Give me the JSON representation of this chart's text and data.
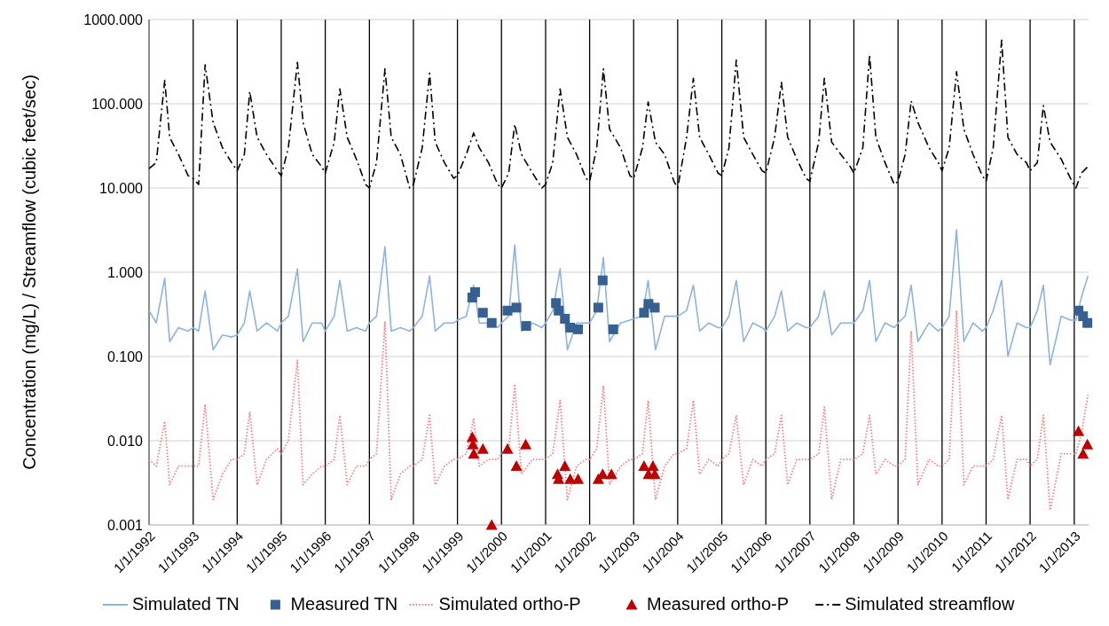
{
  "chart_data": {
    "type": "line",
    "ylabel": "Concentration (mg/L) / Streamflow (cubic feet/sec)",
    "log": "y",
    "grid": true,
    "legend": "bottom",
    "xlim": [
      "1992-01-01",
      "2013-04-30"
    ],
    "xticks": [
      {
        "value": "1992-01-01",
        "label": "1/1/1992"
      },
      {
        "value": "1993-01-01",
        "label": "1/1/1993"
      },
      {
        "value": "1994-01-01",
        "label": "1/1/1994"
      },
      {
        "value": "1995-01-01",
        "label": "1/1/1995"
      },
      {
        "value": "1996-01-01",
        "label": "1/1/1996"
      },
      {
        "value": "1997-01-01",
        "label": "1/1/1997"
      },
      {
        "value": "1998-01-01",
        "label": "1/1/1998"
      },
      {
        "value": "1999-01-01",
        "label": "1/1/1999"
      },
      {
        "value": "2000-01-01",
        "label": "1/1/2000"
      },
      {
        "value": "2001-01-01",
        "label": "1/1/2001"
      },
      {
        "value": "2002-01-01",
        "label": "1/1/2002"
      },
      {
        "value": "2003-01-01",
        "label": "1/1/2003"
      },
      {
        "value": "2004-01-01",
        "label": "1/1/2004"
      },
      {
        "value": "2005-01-01",
        "label": "1/1/2005"
      },
      {
        "value": "2006-01-01",
        "label": "1/1/2006"
      },
      {
        "value": "2007-01-01",
        "label": "1/1/2007"
      },
      {
        "value": "2008-01-01",
        "label": "1/1/2008"
      },
      {
        "value": "2009-01-01",
        "label": "1/1/2009"
      },
      {
        "value": "2010-01-01",
        "label": "1/1/2010"
      },
      {
        "value": "2011-01-01",
        "label": "1/1/2011"
      },
      {
        "value": "2012-01-01",
        "label": "1/1/2012"
      },
      {
        "value": "2013-01-01",
        "label": "1/1/2013"
      }
    ],
    "ylim": [
      0.001,
      1000
    ],
    "yticks": [
      {
        "value": 0.001,
        "label": "0.001"
      },
      {
        "value": 0.01,
        "label": "0.010"
      },
      {
        "value": 0.1,
        "label": "0.100"
      },
      {
        "value": 1,
        "label": "1.000"
      },
      {
        "value": 10,
        "label": "10.000"
      },
      {
        "value": 100,
        "label": "100.000"
      },
      {
        "value": 1000,
        "label": "1000.000"
      }
    ],
    "x": [
      "1992-01-01",
      "1992-03-01",
      "1992-05-10",
      "1992-06-20",
      "1992-09-01",
      "1992-11-20",
      "1993-01-01",
      "1993-02-15",
      "1993-04-10",
      "1993-06-15",
      "1993-09-01",
      "1993-11-15",
      "1994-01-01",
      "1994-03-01",
      "1994-04-15",
      "1994-06-15",
      "1994-09-01",
      "1994-12-01",
      "1995-01-01",
      "1995-03-01",
      "1995-05-15",
      "1995-07-01",
      "1995-09-15",
      "1995-12-01",
      "1996-01-01",
      "1996-03-15",
      "1996-05-01",
      "1996-07-01",
      "1996-09-15",
      "1996-12-01",
      "1997-01-01",
      "1997-03-01",
      "1997-05-10",
      "1997-07-01",
      "1997-09-15",
      "1997-12-01",
      "1998-01-01",
      "1998-03-15",
      "1998-05-15",
      "1998-07-01",
      "1998-09-15",
      "1998-12-01",
      "1999-01-01",
      "1999-03-15",
      "1999-05-15",
      "1999-07-01",
      "1999-09-15",
      "1999-12-01",
      "2000-01-01",
      "2000-03-01",
      "2000-04-20",
      "2000-06-15",
      "2000-09-15",
      "2000-12-01",
      "2001-01-01",
      "2001-03-01",
      "2001-05-01",
      "2001-07-01",
      "2001-09-15",
      "2001-12-01",
      "2002-01-01",
      "2002-03-01",
      "2002-04-25",
      "2002-06-15",
      "2002-09-15",
      "2002-12-01",
      "2003-01-01",
      "2003-03-15",
      "2003-05-01",
      "2003-07-01",
      "2003-09-15",
      "2003-12-01",
      "2004-01-01",
      "2004-03-15",
      "2004-05-10",
      "2004-07-01",
      "2004-09-15",
      "2004-12-01",
      "2005-01-01",
      "2005-03-01",
      "2005-05-01",
      "2005-07-01",
      "2005-09-15",
      "2005-12-01",
      "2006-01-01",
      "2006-03-15",
      "2006-05-10",
      "2006-07-01",
      "2006-09-15",
      "2006-12-01",
      "2007-01-01",
      "2007-03-15",
      "2007-05-01",
      "2007-07-01",
      "2007-09-15",
      "2007-12-01",
      "2008-01-01",
      "2008-03-15",
      "2008-05-10",
      "2008-07-01",
      "2008-09-15",
      "2008-12-01",
      "2009-01-01",
      "2009-03-01",
      "2009-04-20",
      "2009-06-15",
      "2009-09-15",
      "2009-12-01",
      "2010-01-01",
      "2010-03-01",
      "2010-05-01",
      "2010-07-01",
      "2010-09-15",
      "2010-12-01",
      "2011-01-01",
      "2011-03-01",
      "2011-05-10",
      "2011-07-01",
      "2011-09-15",
      "2011-12-01",
      "2012-01-01",
      "2012-03-01",
      "2012-04-20",
      "2012-06-15",
      "2012-09-15",
      "2012-12-01",
      "2013-01-15",
      "2013-03-01",
      "2013-04-25"
    ],
    "series": [
      {
        "name": "Simulated TN",
        "color": "#8db3e2",
        "line_style": "solid",
        "values": [
          0.35,
          0.25,
          0.85,
          0.15,
          0.22,
          0.2,
          0.22,
          0.2,
          0.6,
          0.12,
          0.18,
          0.17,
          0.18,
          0.25,
          0.6,
          0.2,
          0.25,
          0.2,
          0.25,
          0.3,
          1.1,
          0.15,
          0.25,
          0.25,
          0.2,
          0.3,
          0.8,
          0.2,
          0.22,
          0.2,
          0.25,
          0.3,
          2.0,
          0.2,
          0.22,
          0.2,
          0.22,
          0.3,
          0.9,
          0.2,
          0.25,
          0.25,
          0.27,
          0.3,
          0.7,
          0.25,
          0.25,
          0.22,
          0.25,
          0.3,
          2.1,
          0.2,
          0.25,
          0.22,
          0.25,
          0.35,
          1.1,
          0.12,
          0.25,
          0.25,
          0.25,
          0.35,
          1.5,
          0.15,
          0.25,
          0.27,
          0.28,
          0.3,
          0.8,
          0.12,
          0.3,
          0.3,
          0.3,
          0.35,
          0.7,
          0.2,
          0.25,
          0.22,
          0.22,
          0.3,
          0.8,
          0.15,
          0.25,
          0.22,
          0.2,
          0.3,
          0.6,
          0.2,
          0.25,
          0.22,
          0.22,
          0.3,
          0.6,
          0.18,
          0.25,
          0.25,
          0.25,
          0.35,
          0.8,
          0.15,
          0.25,
          0.22,
          0.25,
          0.3,
          0.7,
          0.15,
          0.25,
          0.2,
          0.22,
          0.3,
          3.2,
          0.15,
          0.25,
          0.2,
          0.22,
          0.35,
          0.8,
          0.1,
          0.25,
          0.22,
          0.22,
          0.35,
          0.7,
          0.08,
          0.3,
          0.27,
          0.27,
          0.5,
          0.9
        ]
      },
      {
        "name": "Measured TN",
        "type": "scatter",
        "color": "#366092",
        "marker": "square",
        "x": [
          "1999-05-04",
          "1999-05-27",
          "1999-07-31",
          "1999-10-12",
          "2000-02-20",
          "2000-05-04",
          "2000-07-24",
          "2001-03-28",
          "2001-04-19",
          "2001-06-10",
          "2001-07-24",
          "2001-09-27",
          "2002-03-14",
          "2002-04-19",
          "2002-07-16",
          "2003-03-28",
          "2003-05-04",
          "2003-06-25",
          "2013-02-05",
          "2013-03-15",
          "2013-04-20"
        ],
        "values": [
          0.5,
          0.58,
          0.33,
          0.25,
          0.35,
          0.38,
          0.23,
          0.43,
          0.35,
          0.28,
          0.22,
          0.21,
          0.38,
          0.8,
          0.21,
          0.33,
          0.42,
          0.38,
          0.35,
          0.3,
          0.25
        ]
      },
      {
        "name": "Simulated ortho-P",
        "color": "#ff7c80",
        "line_style": "dotted",
        "values": [
          0.006,
          0.005,
          0.017,
          0.003,
          0.005,
          0.005,
          0.005,
          0.005,
          0.027,
          0.002,
          0.004,
          0.006,
          0.006,
          0.007,
          0.022,
          0.003,
          0.006,
          0.008,
          0.007,
          0.01,
          0.09,
          0.003,
          0.004,
          0.005,
          0.005,
          0.006,
          0.02,
          0.003,
          0.005,
          0.005,
          0.006,
          0.007,
          0.26,
          0.002,
          0.004,
          0.005,
          0.005,
          0.006,
          0.02,
          0.003,
          0.005,
          0.006,
          0.006,
          0.007,
          0.018,
          0.005,
          0.006,
          0.006,
          0.007,
          0.008,
          0.045,
          0.004,
          0.006,
          0.006,
          0.006,
          0.007,
          0.03,
          0.002,
          0.005,
          0.006,
          0.006,
          0.008,
          0.045,
          0.003,
          0.005,
          0.006,
          0.006,
          0.007,
          0.03,
          0.002,
          0.005,
          0.007,
          0.007,
          0.008,
          0.03,
          0.004,
          0.006,
          0.005,
          0.006,
          0.007,
          0.02,
          0.003,
          0.006,
          0.005,
          0.006,
          0.007,
          0.02,
          0.003,
          0.006,
          0.006,
          0.006,
          0.007,
          0.025,
          0.002,
          0.006,
          0.006,
          0.006,
          0.007,
          0.02,
          0.004,
          0.006,
          0.005,
          0.005,
          0.006,
          0.2,
          0.003,
          0.006,
          0.005,
          0.005,
          0.006,
          0.35,
          0.003,
          0.005,
          0.005,
          0.005,
          0.006,
          0.02,
          0.002,
          0.006,
          0.006,
          0.005,
          0.006,
          0.02,
          0.0015,
          0.007,
          0.007,
          0.007,
          0.012,
          0.035
        ]
      },
      {
        "name": "Measured ortho-P",
        "type": "scatter",
        "color": "#c00000",
        "marker": "triangle",
        "x": [
          "1999-05-04",
          "1999-05-10",
          "1999-05-16",
          "1999-07-31",
          "1999-10-12",
          "2000-02-20",
          "2000-05-04",
          "2000-07-20",
          "2001-04-10",
          "2001-04-19",
          "2001-06-10",
          "2001-07-24",
          "2001-09-27",
          "2002-03-14",
          "2002-04-19",
          "2002-07-01",
          "2003-03-28",
          "2003-05-04",
          "2003-06-10",
          "2003-06-25",
          "2013-02-05",
          "2013-03-15",
          "2013-04-20"
        ],
        "values": [
          0.011,
          0.009,
          0.007,
          0.008,
          0.001,
          0.008,
          0.005,
          0.009,
          0.004,
          0.0035,
          0.005,
          0.0035,
          0.0035,
          0.0035,
          0.004,
          0.004,
          0.005,
          0.004,
          0.005,
          0.004,
          0.013,
          0.007,
          0.009
        ]
      },
      {
        "name": "Simulated streamflow",
        "color": "#000000",
        "line_style": "dashed",
        "values": [
          17,
          20,
          190,
          40,
          25,
          14,
          13,
          11,
          290,
          60,
          30,
          20,
          16,
          25,
          140,
          40,
          25,
          16,
          14,
          30,
          310,
          60,
          25,
          18,
          15,
          35,
          150,
          40,
          22,
          11,
          10,
          20,
          260,
          40,
          25,
          10,
          11,
          30,
          230,
          35,
          20,
          13,
          14,
          25,
          45,
          30,
          20,
          11,
          10,
          15,
          57,
          25,
          15,
          10,
          11,
          20,
          150,
          40,
          25,
          13,
          12,
          30,
          260,
          50,
          30,
          14,
          13,
          30,
          105,
          35,
          25,
          12,
          10,
          40,
          200,
          40,
          25,
          15,
          14,
          30,
          330,
          40,
          25,
          16,
          15,
          40,
          180,
          40,
          22,
          13,
          12,
          35,
          200,
          35,
          25,
          18,
          15,
          30,
          380,
          40,
          20,
          11,
          12,
          25,
          108,
          60,
          30,
          20,
          16,
          30,
          240,
          50,
          25,
          14,
          12,
          30,
          570,
          40,
          25,
          20,
          16,
          20,
          95,
          35,
          22,
          13,
          10,
          15,
          18
        ]
      }
    ]
  }
}
